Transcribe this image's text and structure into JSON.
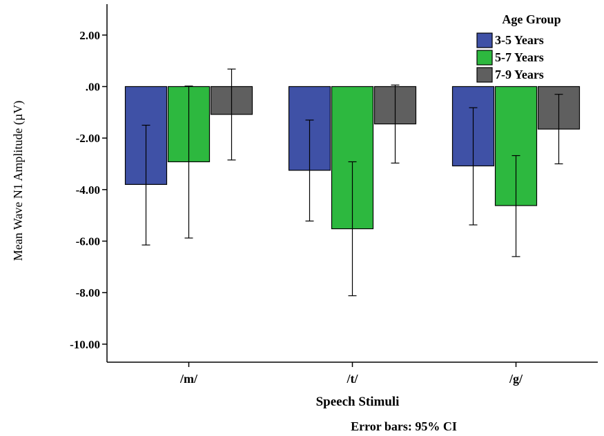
{
  "chart_data": {
    "type": "bar",
    "title": "",
    "xlabel": "Speech Stimuli",
    "ylabel": "Mean Wave N1 Amplitude (µV)",
    "categories": [
      "/m/",
      "/t/",
      "/g/"
    ],
    "ylim": [
      -10.7,
      3.2
    ],
    "yticks": [
      2.0,
      0.0,
      -2.0,
      -4.0,
      -6.0,
      -8.0,
      -10.0
    ],
    "ytick_labels": [
      "2.00",
      ".00",
      "-2.00",
      "-4.00",
      "-6.00",
      "-8.00",
      "-10.00"
    ],
    "grid": false,
    "legend": {
      "title": "Age Group",
      "placement": "top-right"
    },
    "series": [
      {
        "name": "3-5 Years",
        "color": "#3F51A6",
        "values": [
          -3.8,
          -3.25,
          -3.08
        ],
        "ci_low": [
          -6.15,
          -5.22,
          -5.37
        ],
        "ci_high": [
          -1.5,
          -1.3,
          -0.82
        ]
      },
      {
        "name": "5-7 Years",
        "color": "#2DB83F",
        "values": [
          -2.92,
          -5.52,
          -4.62
        ],
        "ci_low": [
          -5.88,
          -8.12,
          -6.6
        ],
        "ci_high": [
          0.02,
          -2.92,
          -2.68
        ]
      },
      {
        "name": "7-9 Years",
        "color": "#5F5F5F",
        "values": [
          -1.08,
          -1.45,
          -1.65
        ],
        "ci_low": [
          -2.85,
          -2.97,
          -3.0
        ],
        "ci_high": [
          0.68,
          0.06,
          -0.3
        ]
      }
    ],
    "footnote": "Error bars: 95% CI"
  }
}
